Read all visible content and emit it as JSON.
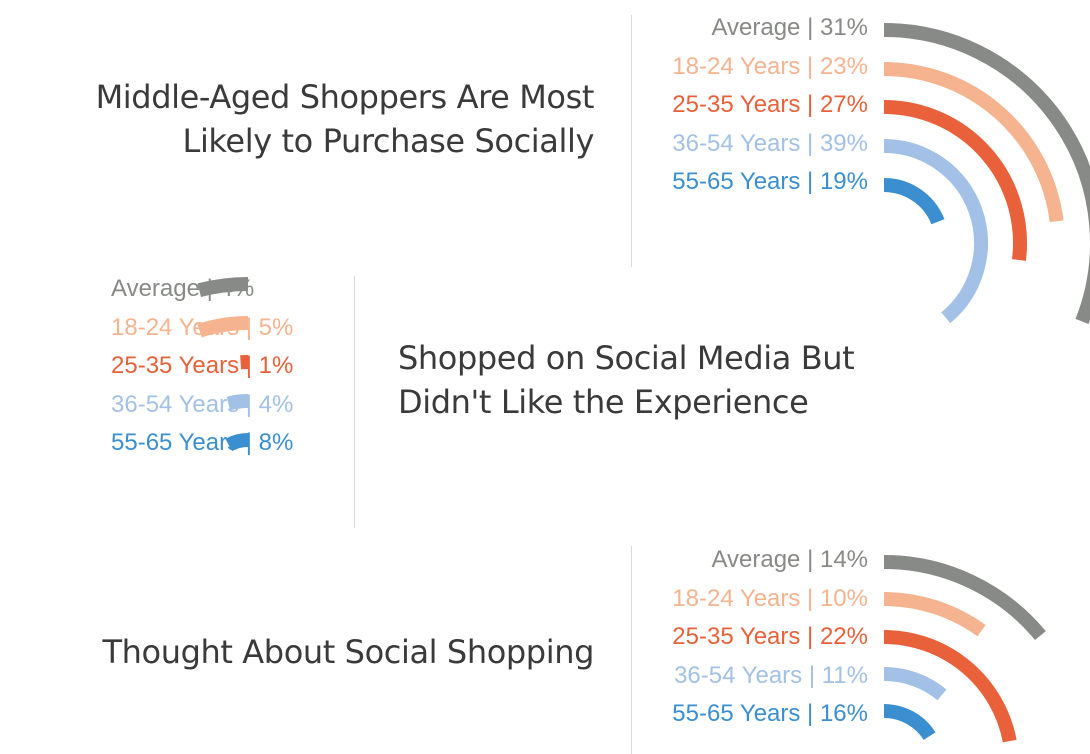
{
  "colors": {
    "average": "#888a87",
    "age_18_24": "#f5b38f",
    "age_25_35": "#e8613a",
    "age_36_54": "#a3c1e6",
    "age_55_65": "#3b8fd0",
    "title": "#3a3a3a",
    "divider": "#d9d9d9"
  },
  "chart_data": [
    {
      "type": "radial-bar",
      "title": "Middle-Aged Shoppers Are Most Likely to Purchase Socially",
      "title_lines": [
        "Middle-Aged Shoppers Are Most",
        "Likely to Purchase Socially"
      ],
      "series": [
        {
          "name": "Average",
          "value": 31,
          "label": "Average | 31%",
          "color_key": "average"
        },
        {
          "name": "18-24 Years",
          "value": 23,
          "label": "18-24 Years | 23%",
          "color_key": "age_18_24"
        },
        {
          "name": "25-35 Years",
          "value": 27,
          "label": "25-35 Years | 27%",
          "color_key": "age_25_35"
        },
        {
          "name": "36-54 Years",
          "value": 39,
          "label": "36-54 Years | 39%",
          "color_key": "age_36_54"
        },
        {
          "name": "55-65 Years",
          "value": 19,
          "label": "55-65 Years | 19%",
          "color_key": "age_55_65"
        }
      ],
      "legend_placement": "left"
    },
    {
      "type": "radial-bar",
      "title": "Shopped on Social Media But Didn't Like the Experience",
      "title_lines": [
        "Shopped on Social Media But",
        "Didn't Like the Experience"
      ],
      "series": [
        {
          "name": "Average",
          "value": 4,
          "label": "Average | 4%",
          "color_key": "average"
        },
        {
          "name": "18-24 Years",
          "value": 5,
          "label": "18-24 Years | 5%",
          "color_key": "age_18_24"
        },
        {
          "name": "25-35 Years",
          "value": 1,
          "label": "25-35 Years | 1%",
          "color_key": "age_25_35"
        },
        {
          "name": "36-54 Years",
          "value": 4,
          "label": "36-54 Years | 4%",
          "color_key": "age_36_54"
        },
        {
          "name": "55-65 Years",
          "value": 8,
          "label": "55-65 Years | 8%",
          "color_key": "age_55_65"
        }
      ],
      "legend_placement": "right"
    },
    {
      "type": "radial-bar",
      "title": "Thought About Social Shopping",
      "title_lines": [
        "Thought About Social Shopping"
      ],
      "series": [
        {
          "name": "Average",
          "value": 14,
          "label": "Average | 14%",
          "color_key": "average"
        },
        {
          "name": "18-24 Years",
          "value": 10,
          "label": "18-24 Years | 10%",
          "color_key": "age_18_24"
        },
        {
          "name": "25-35 Years",
          "value": 22,
          "label": "25-35 Years | 22%",
          "color_key": "age_25_35"
        },
        {
          "name": "36-54 Years",
          "value": 11,
          "label": "36-54 Years | 11%",
          "color_key": "age_36_54"
        },
        {
          "name": "55-65 Years",
          "value": 16,
          "label": "55-65 Years | 16%",
          "color_key": "age_55_65"
        }
      ],
      "legend_placement": "left"
    }
  ]
}
